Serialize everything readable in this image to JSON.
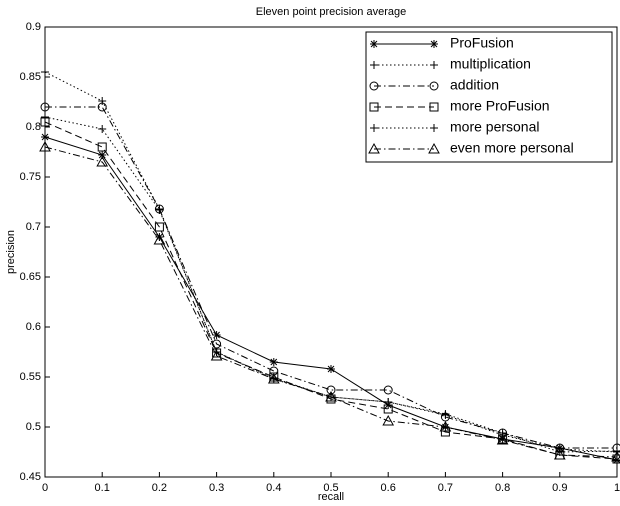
{
  "chart_data": {
    "type": "line",
    "title": "Eleven point precision average",
    "x_label": "recall",
    "y_label": "precision",
    "x": [
      0,
      0.1,
      0.2,
      0.3,
      0.4,
      0.5,
      0.6,
      0.7,
      0.8,
      0.9,
      1
    ],
    "xlim": [
      0,
      1
    ],
    "xticks": [
      0,
      0.1,
      0.2,
      0.3,
      0.4,
      0.5,
      0.6,
      0.7,
      0.8,
      0.9,
      1
    ],
    "ylim": [
      0.45,
      0.9
    ],
    "yticks": [
      0.45,
      0.5,
      0.55,
      0.6,
      0.65,
      0.7,
      0.75,
      0.8,
      0.85,
      0.9
    ],
    "legend": "upper right",
    "series": [
      {
        "name": "ProFusion",
        "color": "#000000",
        "marker": "asterisk",
        "dash": "solid",
        "values": [
          0.79,
          0.772,
          0.69,
          0.592,
          0.565,
          0.558,
          0.522,
          0.5,
          0.488,
          0.479,
          0.467
        ]
      },
      {
        "name": "multiplication",
        "color": "#000000",
        "marker": "plus",
        "dash": "dotted",
        "values": [
          0.81,
          0.798,
          0.717,
          0.575,
          0.549,
          0.53,
          0.525,
          0.512,
          0.492,
          0.478,
          0.475
        ]
      },
      {
        "name": "addition",
        "color": "#000000",
        "marker": "circle",
        "dash": "dashdot",
        "values": [
          0.82,
          0.82,
          0.718,
          0.583,
          0.556,
          0.537,
          0.537,
          0.51,
          0.494,
          0.479,
          0.479
        ]
      },
      {
        "name": "more ProFusion",
        "color": "#000000",
        "marker": "square",
        "dash": "dashed",
        "values": [
          0.805,
          0.78,
          0.7,
          0.574,
          0.55,
          0.528,
          0.518,
          0.495,
          0.488,
          0.472,
          0.468
        ]
      },
      {
        "name": "more personal",
        "color": "#000000",
        "marker": "plus",
        "dash": "dotted",
        "values": [
          0.855,
          0.826,
          0.718,
          0.575,
          0.548,
          0.53,
          0.525,
          0.513,
          0.494,
          0.475,
          0.476
        ]
      },
      {
        "name": "even more personal",
        "color": "#000000",
        "marker": "triangle",
        "dash": "dashdot",
        "values": [
          0.78,
          0.765,
          0.687,
          0.571,
          0.548,
          0.53,
          0.506,
          0.5,
          0.487,
          0.472,
          0.47
        ]
      }
    ]
  }
}
